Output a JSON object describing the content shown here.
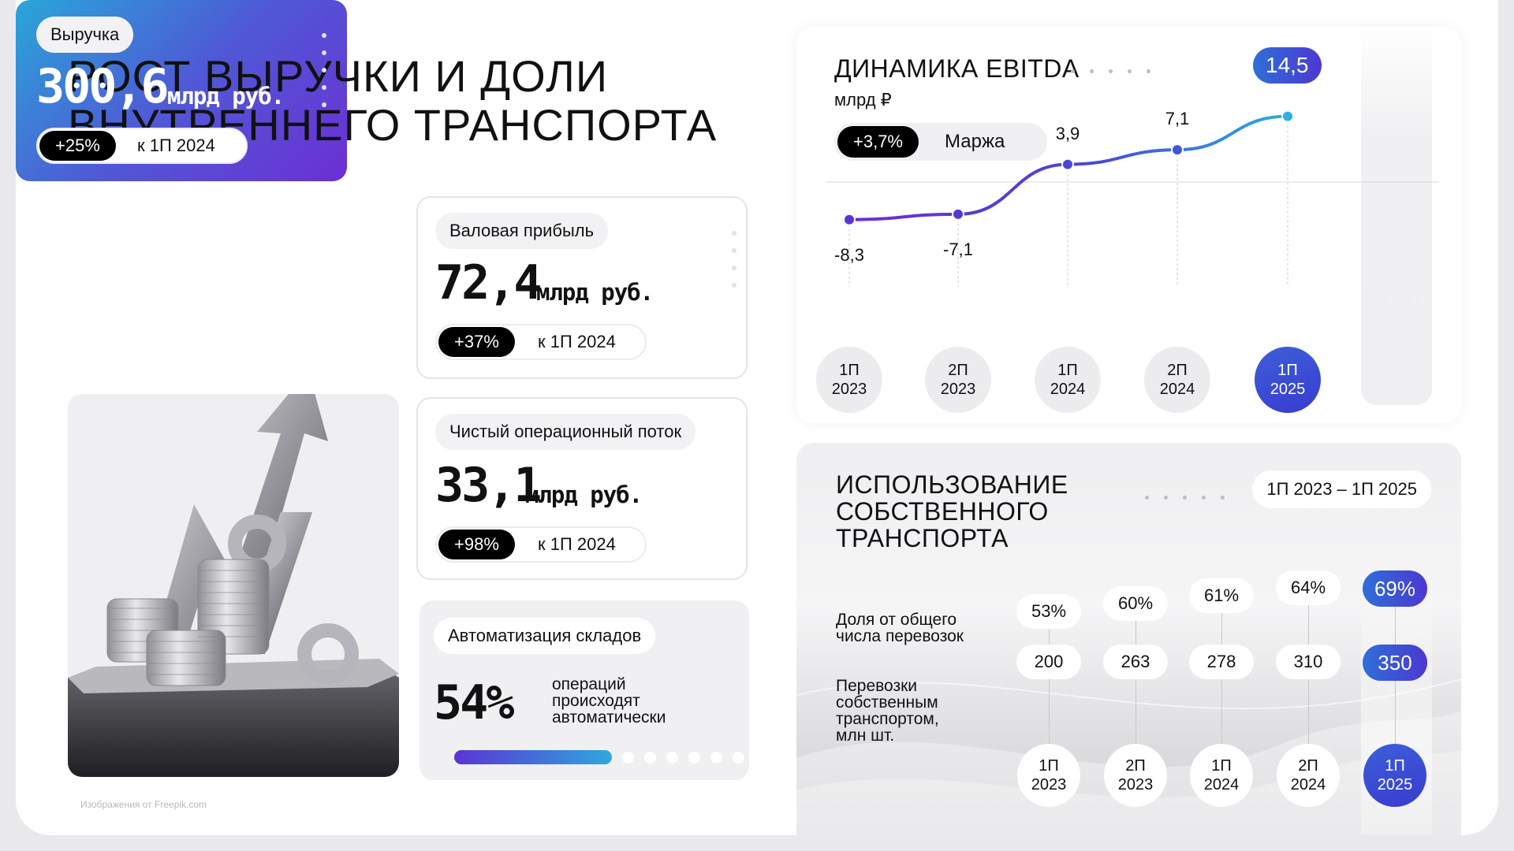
{
  "title": {
    "line1": "РОСТ ВЫРУЧКИ И ДОЛИ",
    "line2": "ВНУТРЕННЕГО ТРАНСПОРТА"
  },
  "revenue": {
    "label": "Выручка",
    "value": "300,6",
    "unit": "млрд руб.",
    "delta": "+25%",
    "compare": "к 1П 2024"
  },
  "gross_profit": {
    "label": "Валовая прибыль",
    "value": "72,4",
    "unit": "млрд руб.",
    "delta": "+37%",
    "compare": "к 1П 2024"
  },
  "cash_flow": {
    "label": "Чистый операционный поток",
    "value": "33,1",
    "unit": "млрд руб.",
    "delta": "+98%",
    "compare": "к 1П 2024"
  },
  "warehouse": {
    "label": "Автоматизация складов",
    "value": "54%",
    "text": "операций происходят автоматически",
    "progress_fraction": 0.54
  },
  "credit": "Изображения от Freepik.com",
  "ebitda": {
    "title": "ДИНАМИКА EBITDA",
    "unit": "млрд ₽",
    "margin_delta": "+3,7%",
    "margin_label": "Маржа",
    "periods": [
      {
        "l1": "1П",
        "l2": "2023",
        "label": "-8,3",
        "value": -8.3
      },
      {
        "l1": "2П",
        "l2": "2023",
        "label": "-7,1",
        "value": -7.1
      },
      {
        "l1": "1П",
        "l2": "2024",
        "label": "3,9",
        "value": 3.9
      },
      {
        "l1": "2П",
        "l2": "2024",
        "label": "7,1",
        "value": 7.1
      },
      {
        "l1": "1П",
        "l2": "2025",
        "label": "14,5",
        "value": 14.5
      }
    ]
  },
  "own_transport": {
    "title_l1": "ИСПОЛЬЗОВАНИЕ",
    "title_l2": "СОБСТВЕННОГО",
    "title_l3": "ТРАНСПОРТА",
    "range": "1П 2023 – 1П 2025",
    "row1_label_l1": "Доля от общего",
    "row1_label_l2": "числа перевозок",
    "row2_label_l1": "Перевозки",
    "row2_label_l2": "собственным",
    "row2_label_l3": "транспортом,",
    "row2_label_l4": "млн шт.",
    "columns": [
      {
        "share": "53%",
        "count": "200",
        "l1": "1П",
        "l2": "2023"
      },
      {
        "share": "60%",
        "count": "263",
        "l1": "2П",
        "l2": "2023"
      },
      {
        "share": "61%",
        "count": "278",
        "l1": "1П",
        "l2": "2024"
      },
      {
        "share": "64%",
        "count": "310",
        "l1": "2П",
        "l2": "2024"
      },
      {
        "share": "69%",
        "count": "350",
        "l1": "1П",
        "l2": "2025"
      }
    ]
  },
  "colors": {
    "accent_blue": "#3a4fd6",
    "accent_violet": "#6c2fd4",
    "accent_cyan": "#2aa6d8"
  }
}
